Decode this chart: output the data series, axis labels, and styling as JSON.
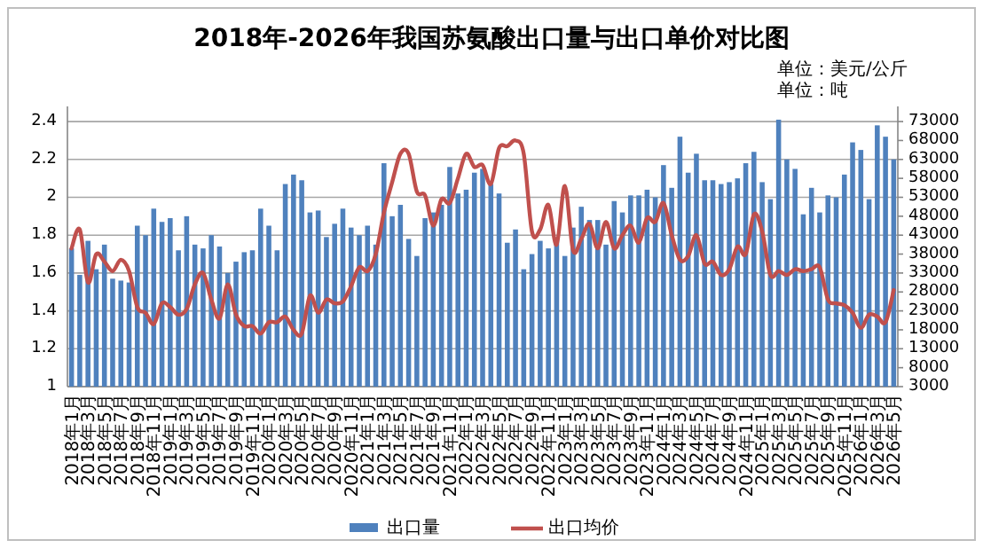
{
  "chart_data": {
    "type": "bar",
    "title": "2018年-2026年我国苏氨酸出口量与出口单价对比图",
    "annotations": [
      "单位：美元/公斤",
      "单位：吨"
    ],
    "categories": [
      "2018年1月",
      null,
      "2018年3月",
      null,
      "2018年5月",
      null,
      "2018年7月",
      null,
      "2018年9月",
      null,
      "2018年11月",
      null,
      "2019年1月",
      null,
      "2019年3月",
      null,
      "2019年5月",
      null,
      "2019年7月",
      null,
      "2019年9月",
      null,
      "2019年11月",
      null,
      "2020年1月",
      null,
      "2020年3月",
      null,
      "2020年5月",
      null,
      "2020年7月",
      null,
      "2020年9月",
      null,
      "2020年11月",
      null,
      "2021年1月",
      null,
      "2021年3月",
      null,
      "2021年5月",
      null,
      "2021年7月",
      null,
      "2021年9月",
      null,
      "2021年11月",
      null,
      "2022年1月",
      null,
      "2022年3月",
      null,
      "2022年5月",
      null,
      "2022年7月",
      null,
      "2022年9月",
      null,
      "2022年11月",
      null,
      "2023年1月",
      null,
      "2023年3月",
      null,
      "2023年5月",
      null,
      "2023年7月",
      null,
      "2023年9月",
      null,
      "2023年11月",
      null,
      "2024年1月",
      null,
      "2024年3月",
      null,
      "2024年5月",
      null,
      "2024年7月",
      null,
      "2024年9月",
      null,
      "2024年11月",
      null,
      "2025年1月",
      null,
      "2025年3月",
      null,
      "2025年5月",
      null,
      "2025年7月",
      null,
      "2025年9月",
      null,
      "2025年11月",
      null,
      "2026年1月",
      null,
      "2026年3月",
      null,
      "2026年5月"
    ],
    "series": [
      {
        "name": "出口量",
        "axis": "y2",
        "color": "#4f81bd",
        "values": [
          39500,
          32500,
          41500,
          34000,
          40500,
          31500,
          31000,
          30500,
          45500,
          43000,
          50000,
          46500,
          47500,
          39000,
          48000,
          40500,
          39500,
          43000,
          40000,
          33000,
          36000,
          38500,
          39000,
          50000,
          45500,
          39000,
          56500,
          59000,
          57500,
          49000,
          49500,
          42500,
          46000,
          50000,
          45000,
          43000,
          45500,
          40500,
          62000,
          48000,
          51000,
          42000,
          37500,
          47500,
          49000,
          51000,
          61000,
          54000,
          55000,
          59500,
          60500,
          56500,
          54000,
          41000,
          44500,
          34000,
          38000,
          41500,
          39500,
          42500,
          37500,
          45000,
          50500,
          47000,
          47000,
          40500,
          52000,
          49000,
          53500,
          53500,
          55000,
          53000,
          61500,
          55500,
          69000,
          59500,
          64500,
          57500,
          57500,
          56500,
          57000,
          58000,
          62000,
          65000,
          57000,
          52500,
          73500,
          63000,
          60500,
          48500,
          55500,
          49000,
          53500,
          53000,
          59000,
          67500,
          65500,
          52500,
          72000,
          69000,
          63000
        ]
      },
      {
        "name": "出口均价",
        "type": "line",
        "color": "#c0504d",
        "values": [
          1.73,
          1.83,
          1.55,
          1.7,
          1.66,
          1.61,
          1.67,
          1.61,
          1.42,
          1.39,
          1.33,
          1.44,
          1.42,
          1.38,
          1.41,
          1.54,
          1.6,
          1.46,
          1.36,
          1.54,
          1.38,
          1.32,
          1.32,
          1.28,
          1.34,
          1.34,
          1.37,
          1.3,
          1.28,
          1.48,
          1.39,
          1.46,
          1.44,
          1.45,
          1.53,
          1.63,
          1.61,
          1.7,
          1.92,
          2.08,
          2.23,
          2.23,
          2.03,
          2.01,
          1.85,
          1.99,
          1.97,
          2.1,
          2.23,
          2.16,
          2.17,
          2.07,
          2.26,
          2.27,
          2.3,
          2.23,
          1.82,
          1.83,
          1.96,
          1.75,
          2.06,
          1.72,
          1.78,
          1.86,
          1.73,
          1.87,
          1.73,
          1.8,
          1.85,
          1.76,
          1.89,
          1.87,
          1.97,
          1.8,
          1.67,
          1.69,
          1.8,
          1.65,
          1.66,
          1.59,
          1.62,
          1.74,
          1.7,
          1.91,
          1.82,
          1.59,
          1.61,
          1.59,
          1.62,
          1.61,
          1.62,
          1.63,
          1.46,
          1.44,
          1.43,
          1.39,
          1.31,
          1.38,
          1.37,
          1.34,
          1.51
        ]
      }
    ],
    "ylim": [
      1,
      2.48
    ],
    "yticks": [
      1,
      1.2,
      1.4,
      1.6,
      1.8,
      2,
      2.2,
      2.4
    ],
    "y2lim": [
      3000,
      77000
    ],
    "y2ticks": [
      3000,
      8000,
      13000,
      18000,
      23000,
      28000,
      33000,
      38000,
      43000,
      48000,
      53000,
      58000,
      63000,
      68000,
      73000
    ],
    "grid": "y",
    "legend": "bottom"
  }
}
